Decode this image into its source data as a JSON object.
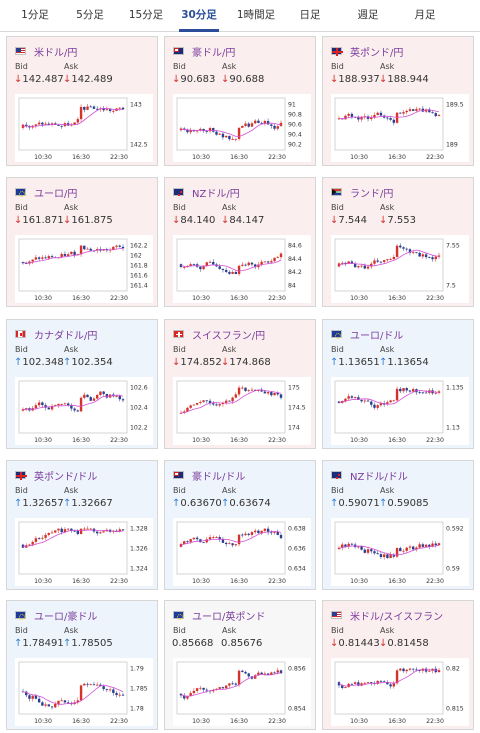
{
  "tabs": [
    "1分足",
    "5分足",
    "15分足",
    "30分足",
    "1時間足",
    "日足",
    "週足",
    "月足"
  ],
  "active_tab": 3,
  "labels": {
    "bid": "Bid",
    "ask": "Ask"
  },
  "x_ticks": [
    "10:30",
    "16:30",
    "22:30"
  ],
  "pairs": [
    {
      "name": "米ドル/円",
      "flag": "us",
      "dir": "down",
      "bid": "142.487",
      "ask": "142.489",
      "yticks": [
        "143",
        "142.5"
      ]
    },
    {
      "name": "豪ドル/円",
      "flag": "au",
      "dir": "down",
      "bid": "90.683",
      "ask": "90.688",
      "yticks": [
        "91",
        "90.8",
        "90.6",
        "90.4",
        "90.2"
      ]
    },
    {
      "name": "英ポンド/円",
      "flag": "gb",
      "dir": "down",
      "bid": "188.937",
      "ask": "188.944",
      "yticks": [
        "189.5",
        "189"
      ]
    },
    {
      "name": "ユーロ/円",
      "flag": "eu",
      "dir": "down",
      "bid": "161.871",
      "ask": "161.875",
      "yticks": [
        "162.2",
        "162",
        "161.8",
        "161.6",
        "161.4"
      ]
    },
    {
      "name": "NZドル/円",
      "flag": "nz",
      "dir": "down",
      "bid": "84.140",
      "ask": "84.147",
      "yticks": [
        "84.6",
        "84.4",
        "84.2",
        "84"
      ]
    },
    {
      "name": "ランド/円",
      "flag": "za",
      "dir": "down",
      "bid": "7.544",
      "ask": "7.553",
      "yticks": [
        "7.55",
        "7.5"
      ]
    },
    {
      "name": "カナダドル/円",
      "flag": "ca",
      "dir": "up",
      "bid": "102.348",
      "ask": "102.354",
      "yticks": [
        "102.6",
        "102.4",
        "102.2"
      ]
    },
    {
      "name": "スイスフラン/円",
      "flag": "ch",
      "dir": "down",
      "bid": "174.852",
      "ask": "174.868",
      "yticks": [
        "175",
        "174.5",
        "174"
      ]
    },
    {
      "name": "ユーロ/ドル",
      "flag": "eu",
      "dir": "up",
      "bid": "1.13651",
      "ask": "1.13654",
      "yticks": [
        "1.135",
        "1.13"
      ]
    },
    {
      "name": "英ポンド/ドル",
      "flag": "gb",
      "dir": "up",
      "bid": "1.32657",
      "ask": "1.32667",
      "yticks": [
        "1.328",
        "1.326",
        "1.324"
      ]
    },
    {
      "name": "豪ドル/ドル",
      "flag": "au",
      "dir": "up",
      "bid": "0.63670",
      "ask": "0.63674",
      "yticks": [
        "0.638",
        "0.636",
        "0.634"
      ]
    },
    {
      "name": "NZドル/ドル",
      "flag": "nz",
      "dir": "up",
      "bid": "0.59071",
      "ask": "0.59085",
      "yticks": [
        "0.592",
        "0.59"
      ]
    },
    {
      "name": "ユーロ/豪ドル",
      "flag": "eu",
      "dir": "up",
      "bid": "1.78491",
      "ask": "1.78505",
      "yticks": [
        "1.79",
        "1.785",
        "1.78"
      ]
    },
    {
      "name": "ユーロ/英ポンド",
      "flag": "eu",
      "dir": "flat",
      "bid": "0.85668",
      "ask": "0.85676",
      "yticks": [
        "0.856",
        "0.854"
      ]
    },
    {
      "name": "米ドル/スイスフラン",
      "flag": "us",
      "dir": "down",
      "bid": "0.81443",
      "ask": "0.81458",
      "yticks": [
        "0.82",
        "0.815"
      ]
    }
  ],
  "colors": {
    "up_candle": "#d4322a",
    "down_candle": "#2a3f8f",
    "ma_line": "#d34fd6",
    "ma_line2": "#3aa0e0",
    "down_bg": "#fbeeee",
    "up_bg": "#eef4fb"
  }
}
